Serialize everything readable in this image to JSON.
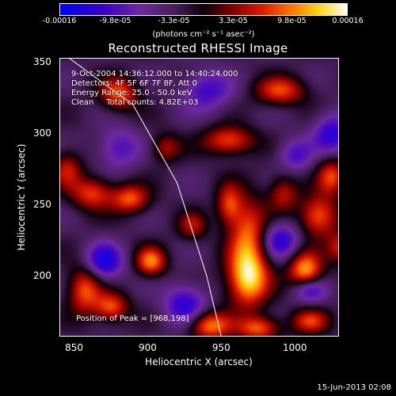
{
  "chart_data": {
    "type": "heatmap",
    "title": "Reconstructed RHESSI Image",
    "xlabel": "Heliocentric X (arcsec)",
    "ylabel": "Heliocentric Y (arcsec)",
    "xlim": [
      840,
      1030
    ],
    "ylim": [
      157,
      353
    ],
    "xticks": [
      850,
      900,
      950,
      1000
    ],
    "yticks": [
      200,
      250,
      300,
      350
    ],
    "colorbar": {
      "ticks": [
        "-0.00016",
        "-9.8e-05",
        "-3.3e-05",
        "3.3e-05",
        "9.8e-05",
        "0.00016"
      ],
      "tick_values": [
        -0.00016,
        -9.8e-05,
        -3.3e-05,
        3.3e-05,
        9.8e-05,
        0.00016
      ],
      "range": [
        -0.00016,
        0.00016
      ],
      "units": "(photons cm⁻² s⁻¹ asec⁻²)"
    },
    "annotations": {
      "time_range": "9-Oct-2004 14:36:12.000 to 14:40:24.000",
      "detectors": "Detectors: 4F 5F 6F 7F 8F, Att 0",
      "energy": "Energy Range: 25.0 - 50.0 keV",
      "clean": "Clean     Total counts: 4.82E+03",
      "peak": "Position of Peak = [968,198]"
    },
    "peak_position": [
      968,
      198
    ],
    "limb_curve": [
      [
        837,
        360
      ],
      [
        890,
        320
      ],
      [
        920,
        265
      ],
      [
        940,
        200
      ],
      [
        950,
        157
      ]
    ],
    "blobs": [
      {
        "x": 968,
        "y": 198,
        "amp": 1.0,
        "sx": 10,
        "sy": 14
      },
      {
        "x": 968,
        "y": 230,
        "amp": 0.7,
        "sx": 9,
        "sy": 18
      },
      {
        "x": 1007,
        "y": 204,
        "amp": 0.9,
        "sx": 8,
        "sy": 9
      },
      {
        "x": 1016,
        "y": 242,
        "amp": 0.75,
        "sx": 9,
        "sy": 10
      },
      {
        "x": 902,
        "y": 210,
        "amp": 0.8,
        "sx": 7,
        "sy": 7
      },
      {
        "x": 888,
        "y": 254,
        "amp": 0.7,
        "sx": 9,
        "sy": 7
      },
      {
        "x": 862,
        "y": 258,
        "amp": 0.65,
        "sx": 10,
        "sy": 8
      },
      {
        "x": 857,
        "y": 190,
        "amp": 0.7,
        "sx": 8,
        "sy": 12
      },
      {
        "x": 875,
        "y": 178,
        "amp": 0.7,
        "sx": 8,
        "sy": 7
      },
      {
        "x": 942,
        "y": 165,
        "amp": 0.8,
        "sx": 10,
        "sy": 7
      },
      {
        "x": 975,
        "y": 163,
        "amp": 0.7,
        "sx": 10,
        "sy": 6
      },
      {
        "x": 1010,
        "y": 168,
        "amp": 0.6,
        "sx": 9,
        "sy": 6
      },
      {
        "x": 880,
        "y": 328,
        "amp": 0.7,
        "sx": 9,
        "sy": 8
      },
      {
        "x": 955,
        "y": 295,
        "amp": 0.7,
        "sx": 12,
        "sy": 7
      },
      {
        "x": 990,
        "y": 330,
        "amp": 0.65,
        "sx": 12,
        "sy": 7
      },
      {
        "x": 1025,
        "y": 270,
        "amp": 0.65,
        "sx": 7,
        "sy": 9
      },
      {
        "x": 912,
        "y": 290,
        "amp": 0.45,
        "sx": 7,
        "sy": 7
      },
      {
        "x": 955,
        "y": 250,
        "amp": 0.6,
        "sx": 6,
        "sy": 10
      },
      {
        "x": 930,
        "y": 235,
        "amp": 0.45,
        "sx": 7,
        "sy": 7
      },
      {
        "x": 845,
        "y": 275,
        "amp": 0.5,
        "sx": 7,
        "sy": 9
      },
      {
        "x": 992,
        "y": 258,
        "amp": 0.5,
        "sx": 7,
        "sy": 9
      },
      {
        "x": 1030,
        "y": 220,
        "amp": 0.5,
        "sx": 6,
        "sy": 8
      },
      {
        "x": 990,
        "y": 225,
        "amp": -0.6,
        "sx": 9,
        "sy": 9
      },
      {
        "x": 925,
        "y": 180,
        "amp": -0.6,
        "sx": 10,
        "sy": 10
      },
      {
        "x": 870,
        "y": 210,
        "amp": -0.7,
        "sx": 9,
        "sy": 9
      },
      {
        "x": 1025,
        "y": 300,
        "amp": -0.6,
        "sx": 9,
        "sy": 10
      },
      {
        "x": 940,
        "y": 330,
        "amp": -0.5,
        "sx": 12,
        "sy": 10
      },
      {
        "x": 1010,
        "y": 190,
        "amp": -0.55,
        "sx": 8,
        "sy": 6
      },
      {
        "x": 880,
        "y": 290,
        "amp": -0.45,
        "sx": 10,
        "sy": 10
      },
      {
        "x": 1000,
        "y": 285,
        "amp": -0.45,
        "sx": 8,
        "sy": 8
      }
    ]
  },
  "footer": {
    "timestamp": "15-Jun-2013 02:08"
  }
}
